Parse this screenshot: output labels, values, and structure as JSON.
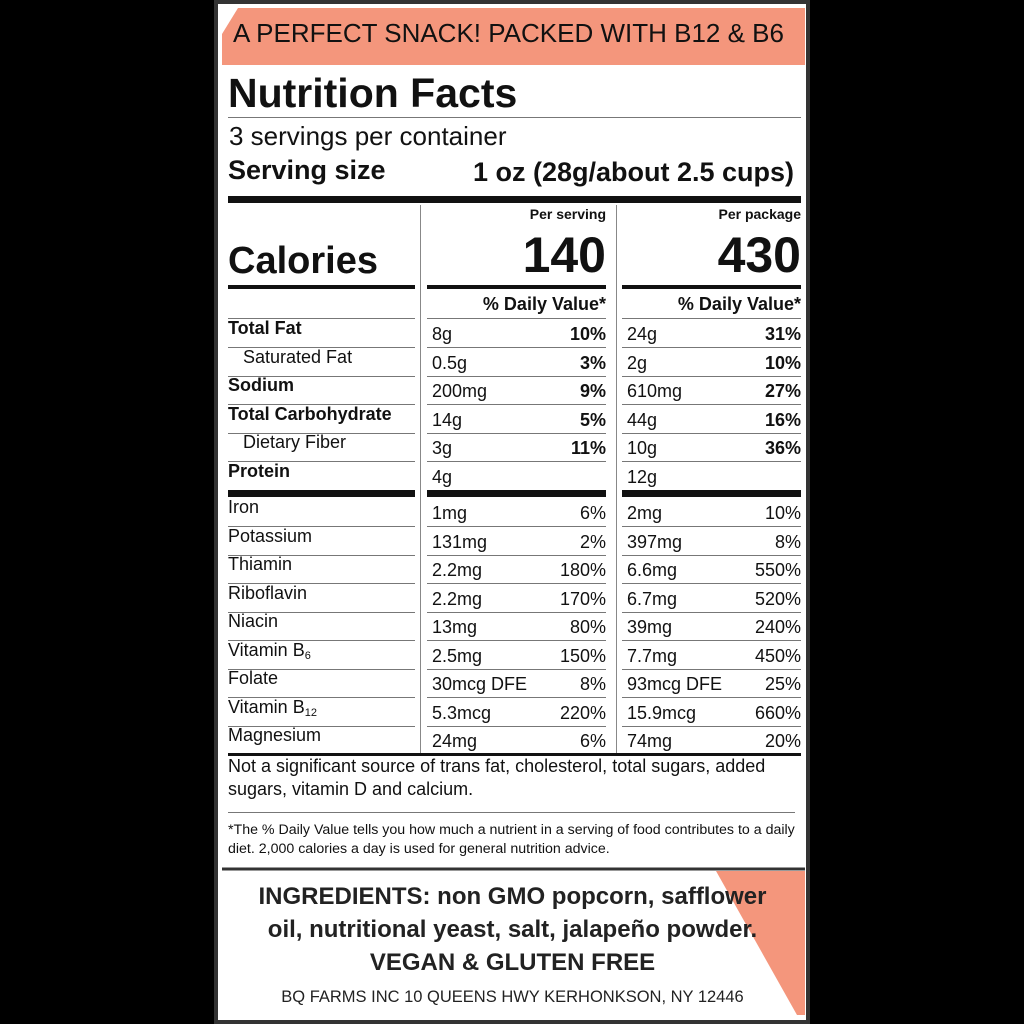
{
  "banner": "A PERFECT SNACK! PACKED WITH B12 & B6",
  "title": "Nutrition Facts",
  "servings": "3 servings per container",
  "serving_size": {
    "label": "Serving size",
    "value": "1 oz (28g/about 2.5 cups)"
  },
  "columns": [
    "Per serving",
    "Per package"
  ],
  "calories": {
    "label": "Calories",
    "values": [
      "140",
      "430"
    ]
  },
  "dv_header": "% Daily Value*",
  "nutrients": [
    {
      "name": "Total Fat",
      "bold": true,
      "indent": false,
      "serving": [
        "8g",
        "10%"
      ],
      "package": [
        "24g",
        "31%"
      ]
    },
    {
      "name": "Saturated Fat",
      "bold": false,
      "indent": true,
      "serving": [
        "0.5g",
        "3%"
      ],
      "package": [
        "2g",
        "10%"
      ]
    },
    {
      "name": "Sodium",
      "bold": true,
      "indent": false,
      "serving": [
        "200mg",
        "9%"
      ],
      "package": [
        "610mg",
        "27%"
      ]
    },
    {
      "name": "Total Carbohydrate",
      "bold": true,
      "indent": false,
      "serving": [
        "14g",
        "5%"
      ],
      "package": [
        "44g",
        "16%"
      ]
    },
    {
      "name": "Dietary Fiber",
      "bold": false,
      "indent": true,
      "serving": [
        "3g",
        "11%"
      ],
      "package": [
        "10g",
        "36%"
      ]
    },
    {
      "name": "Protein",
      "bold": true,
      "indent": false,
      "serving": [
        "4g"
      ],
      "package": [
        "12g"
      ]
    }
  ],
  "vitamins": [
    {
      "name": "Iron",
      "serving": [
        "1mg",
        "6%"
      ],
      "package": [
        "2mg",
        "10%"
      ]
    },
    {
      "name": "Potassium",
      "serving": [
        "131mg",
        "2%"
      ],
      "package": [
        "397mg",
        "8%"
      ]
    },
    {
      "name": "Thiamin",
      "serving": [
        "2.2mg",
        "180%"
      ],
      "package": [
        "6.6mg",
        "550%"
      ]
    },
    {
      "name": "Riboflavin",
      "serving": [
        "2.2mg",
        "170%"
      ],
      "package": [
        "6.7mg",
        "520%"
      ]
    },
    {
      "name": "Niacin",
      "serving": [
        "13mg",
        "80%"
      ],
      "package": [
        "39mg",
        "240%"
      ]
    },
    {
      "name": "Vitamin B",
      "sub": "6",
      "serving": [
        "2.5mg",
        "150%"
      ],
      "package": [
        "7.7mg",
        "450%"
      ]
    },
    {
      "name": "Folate",
      "serving": [
        "30mcg DFE",
        "8%"
      ],
      "package": [
        "93mcg DFE",
        "25%"
      ]
    },
    {
      "name": "Vitamin B",
      "sub": "12",
      "serving": [
        "5.3mcg",
        "220%"
      ],
      "package": [
        "15.9mcg",
        "660%"
      ]
    },
    {
      "name": "Magnesium",
      "serving": [
        "24mg",
        "6%"
      ],
      "package": [
        "74mg",
        "20%"
      ]
    }
  ],
  "note": "Not a significant source of trans fat, cholesterol, total sugars, added sugars, vitamin D and calcium.",
  "footnote": "*The % Daily Value tells you how much a nutrient in a serving of food contributes to a daily diet. 2,000 calories a day is used for general nutrition advice.",
  "ingredients": "INGREDIENTS: non GMO popcorn, safflower oil, nutritional yeast, salt, jalapeño powder. VEGAN & GLUTEN FREE",
  "address": "BQ FARMS INC 10 QUEENS HWY KERHONKSON, NY 12446"
}
